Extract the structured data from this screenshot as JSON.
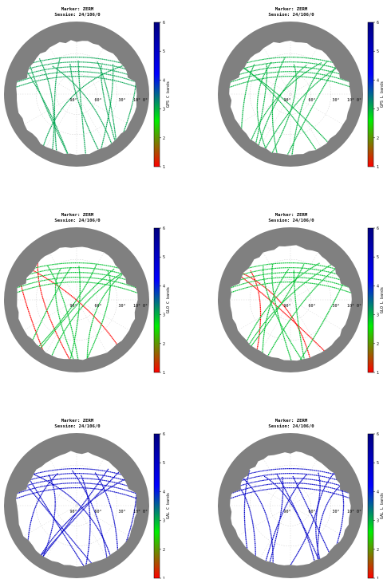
{
  "colors": {
    "mask": "#808080",
    "background": "#ffffff",
    "grid": "#c8c8c8",
    "colorbar_stops": [
      "#ff0000",
      "#00ee00",
      "#0000ff",
      "#000080"
    ]
  },
  "chart_data": [
    {
      "type": "polar-skyplot",
      "title_line1": "Marker: ZERM",
      "title_line2": "Session: 24/106/0",
      "colorbar_label": "GPS C bands",
      "colorbar_range": [
        1,
        6
      ],
      "colorbar_ticks": [
        "1",
        "2",
        "3",
        "4",
        "5",
        "6"
      ],
      "elevation_labels": [
        "90°",
        "60°",
        "30°",
        "10° 0°"
      ],
      "track_color_level": 3.1,
      "highlight_level": 1.0,
      "highlight_tracks": 0,
      "tracks": 12
    },
    {
      "type": "polar-skyplot",
      "title_line1": "Marker: ZERM",
      "title_line2": "Session: 24/106/0",
      "colorbar_label": "GPS L bands",
      "colorbar_range": [
        1,
        6
      ],
      "colorbar_ticks": [
        "1",
        "2",
        "3",
        "4",
        "5",
        "6"
      ],
      "elevation_labels": [
        "90°",
        "60°",
        "30°",
        "10° 0°"
      ],
      "track_color_level": 3.0,
      "highlight_level": 1.0,
      "highlight_tracks": 0,
      "tracks": 12
    },
    {
      "type": "polar-skyplot",
      "title_line1": "Marker: ZERM",
      "title_line2": "Session: 24/106/0",
      "colorbar_label": "GLO C bands",
      "colorbar_range": [
        1,
        6
      ],
      "colorbar_ticks": [
        "1",
        "2",
        "3",
        "4",
        "5",
        "6"
      ],
      "elevation_labels": [
        "90°",
        "60°",
        "30°",
        "10° 0°"
      ],
      "track_color_level": 2.9,
      "highlight_level": 1.0,
      "highlight_tracks": 3,
      "tracks": 12
    },
    {
      "type": "polar-skyplot",
      "title_line1": "Marker: ZERM",
      "title_line2": "Session: 24/106/0",
      "colorbar_label": "GLO L bands",
      "colorbar_range": [
        1,
        6
      ],
      "colorbar_ticks": [
        "1",
        "2",
        "3",
        "4",
        "5",
        "6"
      ],
      "elevation_labels": [
        "90°",
        "60°",
        "30°",
        "10° 0°"
      ],
      "track_color_level": 2.9,
      "highlight_level": 1.0,
      "highlight_tracks": 3,
      "tracks": 12
    },
    {
      "type": "polar-skyplot",
      "title_line1": "Marker: ZERM",
      "title_line2": "Session: 24/106/0",
      "colorbar_label": "GAL C bands",
      "colorbar_range": [
        1,
        6
      ],
      "colorbar_ticks": [
        "1",
        "2",
        "3",
        "4",
        "5",
        "6"
      ],
      "elevation_labels": [
        "90°",
        "60°",
        "30°",
        "10° 0°"
      ],
      "track_color_level": 5.0,
      "highlight_level": 5.0,
      "highlight_tracks": 0,
      "tracks": 12
    },
    {
      "type": "polar-skyplot",
      "title_line1": "Marker: ZERM",
      "title_line2": "Session: 24/106/0",
      "colorbar_label": "GAL L bands",
      "colorbar_range": [
        1,
        6
      ],
      "colorbar_ticks": [
        "1",
        "2",
        "3",
        "4",
        "5",
        "6"
      ],
      "elevation_labels": [
        "90°",
        "60°",
        "30°",
        "10° 0°"
      ],
      "track_color_level": 5.0,
      "highlight_level": 5.0,
      "highlight_tracks": 0,
      "tracks": 12
    }
  ]
}
